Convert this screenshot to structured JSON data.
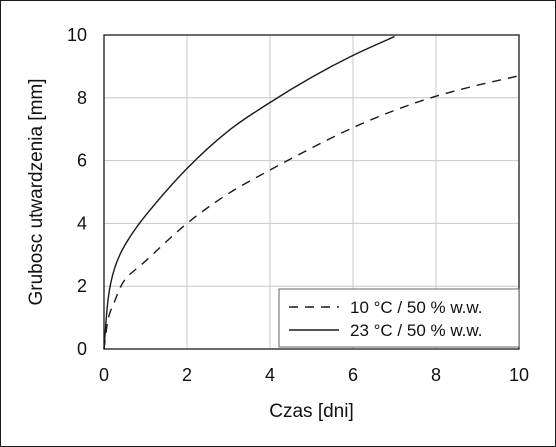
{
  "chart_data": {
    "type": "line",
    "xlabel": "Czas [dni]",
    "ylabel": "Grubosc utwardzenia [mm]",
    "xlim": [
      0,
      10
    ],
    "ylim": [
      0,
      10
    ],
    "xticks": [
      "0",
      "2",
      "4",
      "6",
      "8",
      "10"
    ],
    "yticks": [
      "0",
      "2",
      "4",
      "6",
      "8",
      "10"
    ],
    "grid": true,
    "legend_position": "bottom-right",
    "series": [
      {
        "name": "10 °C / 50 % w.w.",
        "style": "dashed",
        "color": "#1a1a1a",
        "x": [
          0,
          0.1,
          0.25,
          0.5,
          1,
          2,
          3,
          4,
          5,
          6,
          7,
          8,
          9,
          10
        ],
        "y": [
          0,
          0.95,
          1.5,
          2.2,
          2.8,
          4.0,
          4.95,
          5.7,
          6.4,
          7.05,
          7.6,
          8.05,
          8.4,
          8.7
        ]
      },
      {
        "name": "23 °C / 50 % w.w.",
        "style": "solid",
        "color": "#1a1a1a",
        "x": [
          0,
          0.1,
          0.25,
          0.5,
          1,
          2,
          3,
          4,
          5,
          6,
          7
        ],
        "y": [
          0,
          1.6,
          2.55,
          3.3,
          4.25,
          5.75,
          6.95,
          7.85,
          8.65,
          9.35,
          9.95
        ]
      }
    ]
  }
}
